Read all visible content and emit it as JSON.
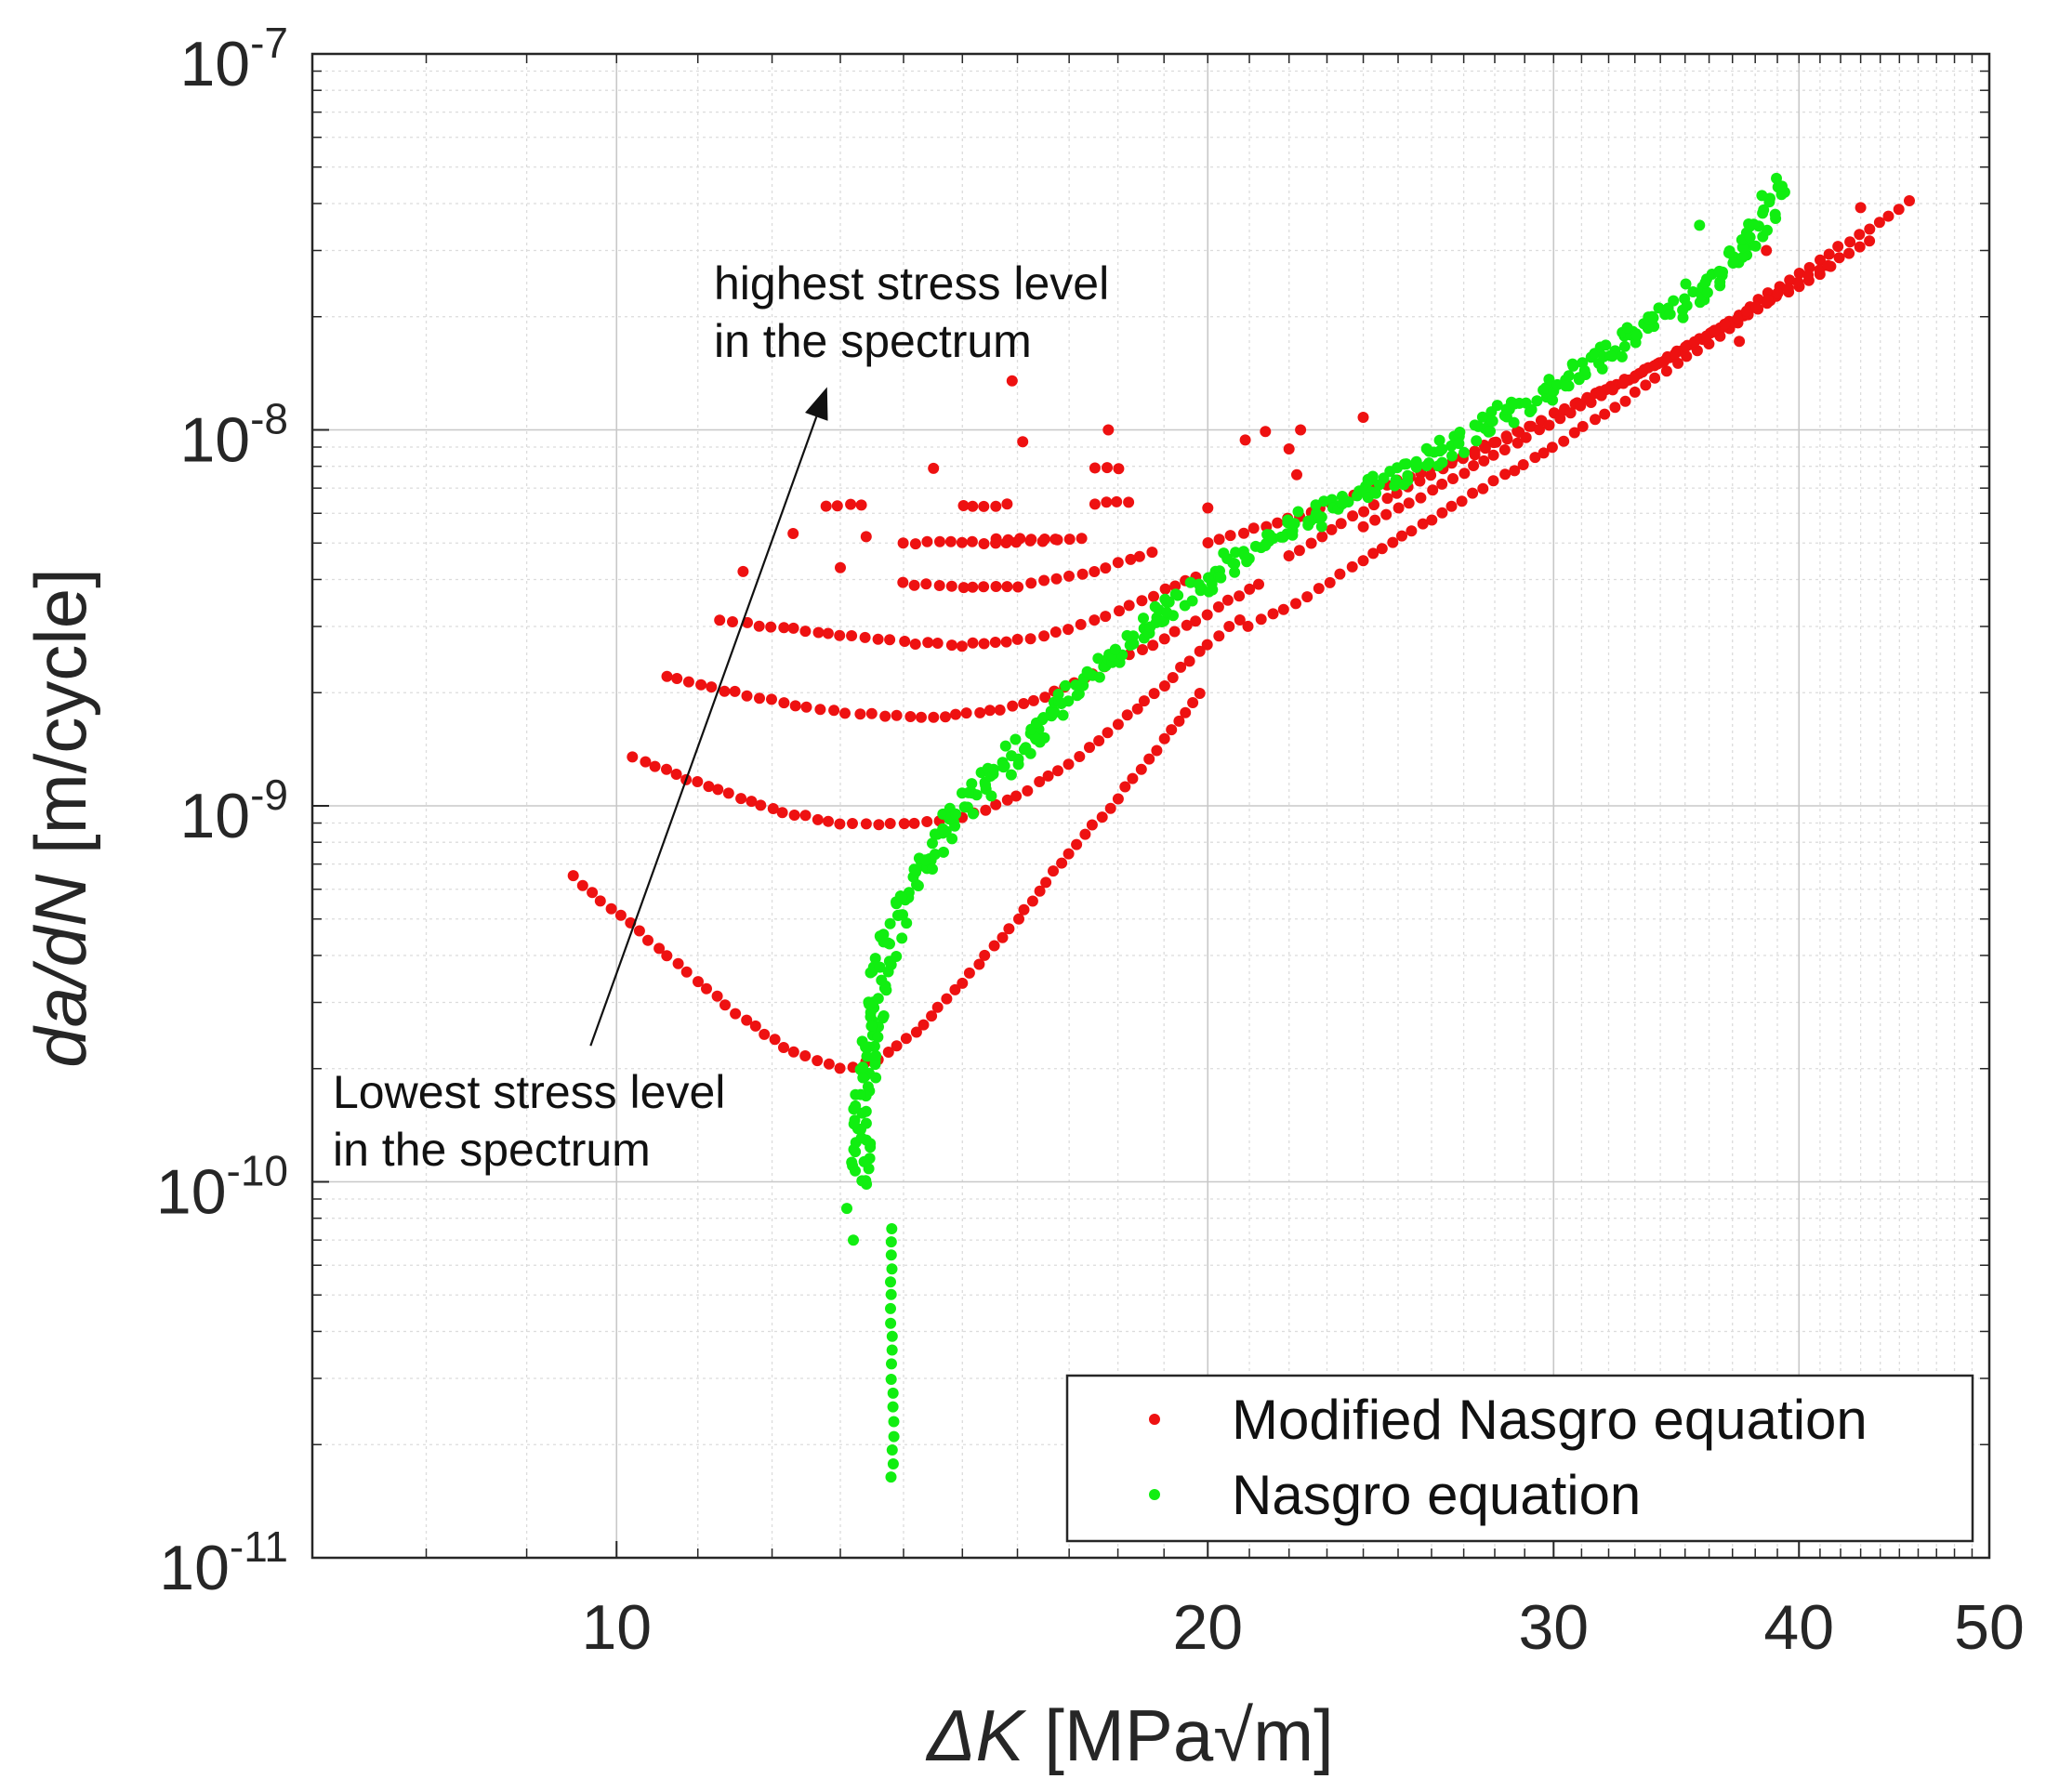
{
  "chart_data": {
    "type": "scatter",
    "title": "",
    "xlabel": {
      "symbol": "ΔK",
      "unit": " [MPa√m]"
    },
    "ylabel": {
      "symbol": "da/dN",
      "unit": " [m/cycle]"
    },
    "xscale": "log",
    "yscale": "log",
    "xlim": [
      7,
      50
    ],
    "ylim": [
      1e-11,
      1e-07
    ],
    "grid": true,
    "minor_grid": true,
    "x_ticks": [
      {
        "value": 10,
        "label": "10"
      },
      {
        "value": 20,
        "label": "20"
      },
      {
        "value": 30,
        "label": "30"
      },
      {
        "value": 40,
        "label": "40"
      },
      {
        "value": 50,
        "label": "50"
      }
    ],
    "y_ticks": [
      {
        "value": 1e-07,
        "base": "10",
        "exp": "-7"
      },
      {
        "value": 1e-08,
        "base": "10",
        "exp": "-8"
      },
      {
        "value": 1e-09,
        "base": "10",
        "exp": "-9"
      },
      {
        "value": 1e-10,
        "base": "10",
        "exp": "-10"
      },
      {
        "value": 1e-11,
        "base": "10",
        "exp": "-11"
      }
    ],
    "legend": {
      "position": "bottom-right",
      "entries": [
        {
          "label": "Modified Nasgro equation",
          "color": "#ee1111"
        },
        {
          "label": "Nasgro equation",
          "color": "#11ee11"
        }
      ]
    },
    "annotations": [
      {
        "lines": [
          "highest stress level",
          "in the spectrum"
        ]
      },
      {
        "lines": [
          "Lowest stress level",
          "in the spectrum"
        ]
      }
    ],
    "arrow": {
      "from": {
        "x": 9.7,
        "y": 2.3e-10
      },
      "to": {
        "x": 12.8,
        "y": 1.3e-08
      }
    },
    "series": [
      {
        "name": "Modified Nasgro equation",
        "color": "#ee1111",
        "curves": [
          {
            "points": [
              [
                9.5,
                6.5e-10
              ],
              [
                10.5,
                4.2e-10
              ],
              [
                11.5,
                2.8e-10
              ],
              [
                12.3,
                2.2e-10
              ],
              [
                13.0,
                2e-10
              ],
              [
                13.6,
                2.1e-10
              ],
              [
                14.2,
                2.5e-10
              ],
              [
                15.0,
                3.4e-10
              ],
              [
                16.0,
                5e-10
              ],
              [
                17.0,
                7.5e-10
              ],
              [
                18.0,
                1.05e-09
              ],
              [
                19.0,
                1.5e-09
              ],
              [
                20.0,
                2.1e-09
              ]
            ]
          },
          {
            "points": [
              [
                10.2,
                1.35e-09
              ],
              [
                11.0,
                1.15e-09
              ],
              [
                12.0,
                9.8e-10
              ],
              [
                13.0,
                9e-10
              ],
              [
                14.0,
                8.9e-10
              ],
              [
                15.0,
                9.3e-10
              ],
              [
                16.0,
                1.06e-09
              ],
              [
                17.0,
                1.3e-09
              ],
              [
                18.0,
                1.65e-09
              ],
              [
                19.0,
                2.1e-09
              ],
              [
                20.0,
                2.7e-09
              ],
              [
                21.0,
                3.3e-09
              ]
            ]
          },
          {
            "points": [
              [
                10.6,
                2.2e-09
              ],
              [
                11.5,
                2e-09
              ],
              [
                12.5,
                1.82e-09
              ],
              [
                13.5,
                1.75e-09
              ],
              [
                14.5,
                1.72e-09
              ],
              [
                15.5,
                1.78e-09
              ],
              [
                16.5,
                1.95e-09
              ],
              [
                17.5,
                2.25e-09
              ],
              [
                18.5,
                2.6e-09
              ],
              [
                19.5,
                3e-09
              ],
              [
                20.5,
                3.5e-09
              ],
              [
                21.5,
                4e-09
              ]
            ]
          },
          {
            "points": [
              [
                11.3,
                3.1e-09
              ],
              [
                12.0,
                3e-09
              ],
              [
                13.0,
                2.85e-09
              ],
              [
                14.0,
                2.72e-09
              ],
              [
                15.0,
                2.68e-09
              ],
              [
                16.0,
                2.75e-09
              ],
              [
                17.0,
                2.95e-09
              ],
              [
                18.0,
                3.3e-09
              ],
              [
                19.0,
                3.75e-09
              ],
              [
                20.0,
                4.2e-09
              ]
            ]
          },
          {
            "points": [
              [
                14.0,
                3.9e-09
              ],
              [
                15.0,
                3.8e-09
              ],
              [
                16.0,
                3.85e-09
              ],
              [
                17.0,
                4.05e-09
              ],
              [
                18.0,
                4.4e-09
              ],
              [
                19.0,
                4.8e-09
              ]
            ]
          },
          {
            "points": [
              [
                14.0,
                5e-09
              ],
              [
                15.0,
                5e-09
              ],
              [
                16.0,
                5.05e-09
              ],
              [
                17.0,
                5.1e-09
              ]
            ]
          },
          {
            "points": [
              [
                15.6,
                5.1e-09
              ],
              [
                16.5,
                5.1e-09
              ],
              [
                17.5,
                5.2e-09
              ]
            ]
          },
          {
            "points": [
              [
                12.8,
                6.3e-09
              ],
              [
                13.5,
                6.3e-09
              ]
            ]
          },
          {
            "points": [
              [
                15.0,
                6.3e-09
              ],
              [
                16.0,
                6.3e-09
              ]
            ]
          },
          {
            "points": [
              [
                17.5,
                6.4e-09
              ],
              [
                18.5,
                6.4e-09
              ]
            ]
          },
          {
            "points": [
              [
                17.5,
                7.9e-09
              ],
              [
                18.3,
                7.9e-09
              ]
            ]
          },
          {
            "points": [
              [
                20.0,
                5e-09
              ],
              [
                22.0,
                5.8e-09
              ],
              [
                24.0,
                6.8e-09
              ],
              [
                26.0,
                7.9e-09
              ],
              [
                28.0,
                9.3e-09
              ],
              [
                30.0,
                1.1e-08
              ],
              [
                33.0,
                1.4e-08
              ],
              [
                36.0,
                1.8e-08
              ],
              [
                40.0,
                2.6e-08
              ],
              [
                46.0,
                4.2e-08
              ]
            ]
          },
          {
            "points": [
              [
                21.0,
                3e-09
              ],
              [
                22.5,
                3.6e-09
              ],
              [
                24.0,
                4.5e-09
              ],
              [
                26.0,
                5.8e-09
              ],
              [
                28.0,
                7.3e-09
              ],
              [
                30.0,
                9e-09
              ],
              [
                33.0,
                1.25e-08
              ],
              [
                36.0,
                1.7e-08
              ],
              [
                40.0,
                2.5e-08
              ]
            ]
          },
          {
            "points": [
              [
                22.0,
                4.6e-09
              ],
              [
                24.0,
                6.1e-09
              ],
              [
                26.0,
                7.6e-09
              ],
              [
                28.0,
                9.2e-09
              ],
              [
                30.0,
                1.1e-08
              ],
              [
                34.0,
                1.5e-08
              ],
              [
                38.0,
                2.1e-08
              ],
              [
                42.0,
                2.8e-08
              ]
            ]
          },
          {
            "points": [
              [
                24.0,
                5.5e-09
              ],
              [
                26.0,
                6.9e-09
              ],
              [
                28.0,
                8.6e-09
              ],
              [
                31.0,
                1.15e-08
              ],
              [
                35.0,
                1.65e-08
              ],
              [
                39.0,
                2.3e-08
              ],
              [
                44.0,
                3.3e-08
              ]
            ]
          }
        ],
        "points": [
          [
            11.6,
            4.2e-09
          ],
          [
            12.3,
            5.3e-09
          ],
          [
            13.4,
            5.2e-09
          ],
          [
            13.0,
            4.3e-09
          ],
          [
            14.5,
            7.9e-09
          ],
          [
            15.9,
            1.35e-08
          ],
          [
            16.1,
            9.3e-09
          ],
          [
            17.8,
            1e-08
          ],
          [
            20.0,
            6.2e-09
          ],
          [
            20.9,
            9.4e-09
          ],
          [
            21.4,
            9.9e-09
          ],
          [
            22.3,
            1e-08
          ],
          [
            22.0,
            8.9e-09
          ],
          [
            22.2,
            7.6e-09
          ],
          [
            24.0,
            1.08e-08
          ],
          [
            37.3,
            1.72e-08
          ],
          [
            38.5,
            3e-08
          ],
          [
            43.0,
            3.9e-08
          ]
        ]
      },
      {
        "name": "Nasgro equation",
        "color": "#11ee11",
        "curve": [
          [
            13.3,
            1e-10
          ],
          [
            13.4,
            2e-10
          ],
          [
            13.6,
            3.5e-10
          ],
          [
            13.9,
            5e-10
          ],
          [
            14.2,
            6.5e-10
          ],
          [
            14.6,
            8.2e-10
          ],
          [
            15.2,
            1.05e-09
          ],
          [
            16.0,
            1.4e-09
          ],
          [
            17.0,
            1.95e-09
          ],
          [
            18.0,
            2.6e-09
          ],
          [
            19.0,
            3.3e-09
          ],
          [
            20.0,
            4e-09
          ],
          [
            21.0,
            4.7e-09
          ],
          [
            22.0,
            5.4e-09
          ],
          [
            24.0,
            6.8e-09
          ],
          [
            26.0,
            8.5e-09
          ],
          [
            28.0,
            1.05e-08
          ],
          [
            30.0,
            1.3e-08
          ],
          [
            32.0,
            1.6e-08
          ],
          [
            35.0,
            2.2e-08
          ],
          [
            37.0,
            2.8e-08
          ],
          [
            39.5,
            4.6e-08
          ]
        ],
        "tail": [
          [
            13.8,
            7.5e-11
          ],
          [
            13.8,
            5e-11
          ],
          [
            13.8,
            3e-11
          ],
          [
            13.85,
            2.3e-11
          ],
          [
            13.8,
            1.5e-11
          ]
        ],
        "points": [
          [
            13.1,
            8.5e-11
          ],
          [
            13.2,
            7e-11
          ],
          [
            35.6,
            3.5e-08
          ],
          [
            38.3,
            4.2e-08
          ]
        ]
      }
    ]
  }
}
